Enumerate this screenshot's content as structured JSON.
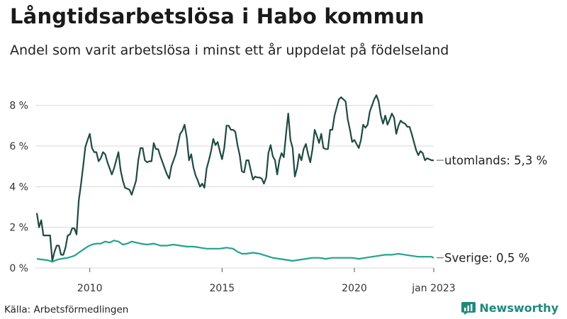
{
  "title": "Långtidsarbetslösa i Habo kommun",
  "subtitle": "Andel som varit arbetslösa i minst ett år uppdelat på födelseland",
  "source": "Källa: Arbetsförmedlingen",
  "brand": {
    "name": "Newsworthy",
    "icon": "bar-chart-icon",
    "color": "#1f8a7a"
  },
  "chart_data": {
    "type": "line",
    "x_start": "2008-01",
    "x_end": "2023-01",
    "xticks": [
      {
        "x": "2010-01",
        "label": "2010"
      },
      {
        "x": "2015-01",
        "label": "2015"
      },
      {
        "x": "2020-01",
        "label": "2020"
      },
      {
        "x": "2023-01",
        "label": "jan 2023"
      }
    ],
    "ylim": [
      0,
      9
    ],
    "yticks": [
      0,
      2,
      4,
      6,
      8
    ],
    "y_unit": "%",
    "grid": true,
    "series": [
      {
        "name": "utomlands",
        "end_label": "utomlands: 5,3 %",
        "color": "#1f4a41",
        "values": [
          [
            "2008-01",
            2.7
          ],
          [
            "2008-02",
            2.0
          ],
          [
            "2008-03",
            2.35
          ],
          [
            "2008-04",
            1.6
          ],
          [
            "2008-05",
            1.6
          ],
          [
            "2008-06",
            1.6
          ],
          [
            "2008-07",
            1.6
          ],
          [
            "2008-08",
            0.35
          ],
          [
            "2008-09",
            0.8
          ],
          [
            "2008-10",
            1.1
          ],
          [
            "2008-11",
            1.1
          ],
          [
            "2008-12",
            0.65
          ],
          [
            "2009-01",
            0.65
          ],
          [
            "2009-02",
            1.0
          ],
          [
            "2009-03",
            1.6
          ],
          [
            "2009-04",
            1.65
          ],
          [
            "2009-05",
            1.95
          ],
          [
            "2009-06",
            1.95
          ],
          [
            "2009-07",
            1.65
          ],
          [
            "2009-08",
            3.3
          ],
          [
            "2009-09",
            4.1
          ],
          [
            "2009-10",
            5.0
          ],
          [
            "2009-11",
            5.95
          ],
          [
            "2009-12",
            6.3
          ],
          [
            "2010-01",
            6.6
          ],
          [
            "2010-02",
            5.9
          ],
          [
            "2010-03",
            5.7
          ],
          [
            "2010-04",
            5.7
          ],
          [
            "2010-05",
            5.25
          ],
          [
            "2010-06",
            5.4
          ],
          [
            "2010-07",
            5.7
          ],
          [
            "2010-08",
            5.6
          ],
          [
            "2010-09",
            5.2
          ],
          [
            "2010-10",
            4.9
          ],
          [
            "2010-11",
            4.6
          ],
          [
            "2010-12",
            4.9
          ],
          [
            "2011-01",
            5.3
          ],
          [
            "2011-02",
            5.7
          ],
          [
            "2011-03",
            4.8
          ],
          [
            "2011-04",
            4.3
          ],
          [
            "2011-05",
            3.95
          ],
          [
            "2011-06",
            3.9
          ],
          [
            "2011-07",
            3.85
          ],
          [
            "2011-08",
            3.6
          ],
          [
            "2011-09",
            3.95
          ],
          [
            "2011-10",
            4.3
          ],
          [
            "2011-11",
            5.3
          ],
          [
            "2011-12",
            5.9
          ],
          [
            "2012-01",
            5.9
          ],
          [
            "2012-02",
            5.3
          ],
          [
            "2012-03",
            5.2
          ],
          [
            "2012-04",
            5.25
          ],
          [
            "2012-05",
            5.25
          ],
          [
            "2012-06",
            6.15
          ],
          [
            "2012-07",
            5.85
          ],
          [
            "2012-08",
            5.85
          ],
          [
            "2012-09",
            5.5
          ],
          [
            "2012-10",
            5.2
          ],
          [
            "2012-11",
            4.9
          ],
          [
            "2012-12",
            4.6
          ],
          [
            "2013-01",
            4.4
          ],
          [
            "2013-02",
            5.0
          ],
          [
            "2013-03",
            5.3
          ],
          [
            "2013-04",
            5.6
          ],
          [
            "2013-05",
            6.1
          ],
          [
            "2013-06",
            6.6
          ],
          [
            "2013-07",
            6.75
          ],
          [
            "2013-08",
            7.05
          ],
          [
            "2013-09",
            6.4
          ],
          [
            "2013-10",
            5.3
          ],
          [
            "2013-11",
            5.6
          ],
          [
            "2013-12",
            4.95
          ],
          [
            "2014-01",
            4.55
          ],
          [
            "2014-02",
            4.3
          ],
          [
            "2014-03",
            4.0
          ],
          [
            "2014-04",
            4.15
          ],
          [
            "2014-05",
            3.95
          ],
          [
            "2014-06",
            4.9
          ],
          [
            "2014-07",
            5.3
          ],
          [
            "2014-08",
            5.75
          ],
          [
            "2014-09",
            6.35
          ],
          [
            "2014-10",
            6.05
          ],
          [
            "2014-11",
            6.2
          ],
          [
            "2014-12",
            5.75
          ],
          [
            "2015-01",
            5.35
          ],
          [
            "2015-02",
            5.9
          ],
          [
            "2015-03",
            7.0
          ],
          [
            "2015-04",
            7.0
          ],
          [
            "2015-05",
            6.8
          ],
          [
            "2015-06",
            6.8
          ],
          [
            "2015-07",
            6.7
          ],
          [
            "2015-08",
            6.05
          ],
          [
            "2015-09",
            5.55
          ],
          [
            "2015-10",
            4.75
          ],
          [
            "2015-11",
            4.7
          ],
          [
            "2015-12",
            5.3
          ],
          [
            "2016-01",
            5.3
          ],
          [
            "2016-02",
            4.8
          ],
          [
            "2016-03",
            4.35
          ],
          [
            "2016-04",
            4.5
          ],
          [
            "2016-05",
            4.45
          ],
          [
            "2016-06",
            4.45
          ],
          [
            "2016-07",
            4.4
          ],
          [
            "2016-08",
            4.15
          ],
          [
            "2016-09",
            4.45
          ],
          [
            "2016-10",
            5.65
          ],
          [
            "2016-11",
            6.05
          ],
          [
            "2016-12",
            5.5
          ],
          [
            "2017-01",
            5.3
          ],
          [
            "2017-02",
            4.6
          ],
          [
            "2017-03",
            5.3
          ],
          [
            "2017-04",
            5.65
          ],
          [
            "2017-05",
            5.45
          ],
          [
            "2017-06",
            6.6
          ],
          [
            "2017-07",
            7.6
          ],
          [
            "2017-08",
            6.3
          ],
          [
            "2017-09",
            5.9
          ],
          [
            "2017-10",
            4.5
          ],
          [
            "2017-11",
            4.9
          ],
          [
            "2017-12",
            5.6
          ],
          [
            "2018-01",
            5.3
          ],
          [
            "2018-02",
            5.85
          ],
          [
            "2018-03",
            6.1
          ],
          [
            "2018-04",
            5.6
          ],
          [
            "2018-05",
            5.2
          ],
          [
            "2018-06",
            5.85
          ],
          [
            "2018-07",
            6.8
          ],
          [
            "2018-08",
            6.5
          ],
          [
            "2018-09",
            6.15
          ],
          [
            "2018-10",
            6.6
          ],
          [
            "2018-11",
            5.9
          ],
          [
            "2018-12",
            5.85
          ],
          [
            "2019-01",
            5.85
          ],
          [
            "2019-02",
            6.8
          ],
          [
            "2019-03",
            6.8
          ],
          [
            "2019-04",
            7.5
          ],
          [
            "2019-05",
            7.9
          ],
          [
            "2019-06",
            8.3
          ],
          [
            "2019-07",
            8.4
          ],
          [
            "2019-08",
            8.3
          ],
          [
            "2019-09",
            8.2
          ],
          [
            "2019-10",
            7.3
          ],
          [
            "2019-11",
            6.8
          ],
          [
            "2019-12",
            6.2
          ],
          [
            "2020-01",
            6.3
          ],
          [
            "2020-02",
            6.1
          ],
          [
            "2020-03",
            5.9
          ],
          [
            "2020-04",
            6.3
          ],
          [
            "2020-05",
            7.05
          ],
          [
            "2020-06",
            6.9
          ],
          [
            "2020-07",
            7.05
          ],
          [
            "2020-08",
            7.7
          ],
          [
            "2020-09",
            8.0
          ],
          [
            "2020-10",
            8.3
          ],
          [
            "2020-11",
            8.5
          ],
          [
            "2020-12",
            8.2
          ],
          [
            "2021-01",
            7.5
          ],
          [
            "2021-02",
            7.1
          ],
          [
            "2021-03",
            7.5
          ],
          [
            "2021-04",
            7.05
          ],
          [
            "2021-05",
            7.3
          ],
          [
            "2021-06",
            7.6
          ],
          [
            "2021-07",
            7.4
          ],
          [
            "2021-08",
            6.6
          ],
          [
            "2021-09",
            7.0
          ],
          [
            "2021-10",
            7.25
          ],
          [
            "2021-11",
            7.15
          ],
          [
            "2021-12",
            7.1
          ],
          [
            "2022-01",
            6.95
          ],
          [
            "2022-02",
            6.95
          ],
          [
            "2022-03",
            6.6
          ],
          [
            "2022-04",
            6.2
          ],
          [
            "2022-05",
            5.8
          ],
          [
            "2022-06",
            5.55
          ],
          [
            "2022-07",
            5.75
          ],
          [
            "2022-08",
            5.65
          ],
          [
            "2022-09",
            5.3
          ],
          [
            "2022-10",
            5.4
          ],
          [
            "2022-11",
            5.35
          ],
          [
            "2022-12",
            5.3
          ],
          [
            "2023-01",
            5.3
          ]
        ]
      },
      {
        "name": "Sverige",
        "end_label": "Sverige: 0,5 %",
        "color": "#22a38f",
        "values": [
          [
            "2008-01",
            0.45
          ],
          [
            "2008-03",
            0.42
          ],
          [
            "2008-06",
            0.38
          ],
          [
            "2008-08",
            0.3
          ],
          [
            "2008-10",
            0.4
          ],
          [
            "2008-12",
            0.45
          ],
          [
            "2009-03",
            0.5
          ],
          [
            "2009-06",
            0.6
          ],
          [
            "2009-08",
            0.75
          ],
          [
            "2009-10",
            0.9
          ],
          [
            "2009-12",
            1.05
          ],
          [
            "2010-02",
            1.15
          ],
          [
            "2010-04",
            1.2
          ],
          [
            "2010-06",
            1.2
          ],
          [
            "2010-08",
            1.3
          ],
          [
            "2010-10",
            1.25
          ],
          [
            "2010-12",
            1.35
          ],
          [
            "2011-02",
            1.3
          ],
          [
            "2011-04",
            1.15
          ],
          [
            "2011-06",
            1.2
          ],
          [
            "2011-08",
            1.3
          ],
          [
            "2011-10",
            1.25
          ],
          [
            "2011-12",
            1.2
          ],
          [
            "2012-03",
            1.15
          ],
          [
            "2012-06",
            1.2
          ],
          [
            "2012-09",
            1.1
          ],
          [
            "2012-12",
            1.1
          ],
          [
            "2013-03",
            1.15
          ],
          [
            "2013-06",
            1.1
          ],
          [
            "2013-09",
            1.05
          ],
          [
            "2013-12",
            1.05
          ],
          [
            "2014-03",
            1.0
          ],
          [
            "2014-06",
            0.95
          ],
          [
            "2014-09",
            0.95
          ],
          [
            "2014-12",
            0.95
          ],
          [
            "2015-03",
            1.0
          ],
          [
            "2015-06",
            0.95
          ],
          [
            "2015-08",
            0.8
          ],
          [
            "2015-10",
            0.7
          ],
          [
            "2015-12",
            0.7
          ],
          [
            "2016-03",
            0.75
          ],
          [
            "2016-06",
            0.7
          ],
          [
            "2016-09",
            0.6
          ],
          [
            "2016-12",
            0.5
          ],
          [
            "2017-03",
            0.45
          ],
          [
            "2017-06",
            0.4
          ],
          [
            "2017-09",
            0.35
          ],
          [
            "2017-12",
            0.4
          ],
          [
            "2018-03",
            0.45
          ],
          [
            "2018-06",
            0.5
          ],
          [
            "2018-09",
            0.5
          ],
          [
            "2018-12",
            0.45
          ],
          [
            "2019-03",
            0.5
          ],
          [
            "2019-06",
            0.5
          ],
          [
            "2019-09",
            0.5
          ],
          [
            "2019-12",
            0.5
          ],
          [
            "2020-03",
            0.45
          ],
          [
            "2020-06",
            0.5
          ],
          [
            "2020-09",
            0.55
          ],
          [
            "2020-12",
            0.6
          ],
          [
            "2021-03",
            0.65
          ],
          [
            "2021-06",
            0.65
          ],
          [
            "2021-09",
            0.7
          ],
          [
            "2021-12",
            0.65
          ],
          [
            "2022-03",
            0.6
          ],
          [
            "2022-06",
            0.55
          ],
          [
            "2022-09",
            0.55
          ],
          [
            "2022-12",
            0.55
          ],
          [
            "2023-01",
            0.5
          ]
        ]
      }
    ]
  }
}
